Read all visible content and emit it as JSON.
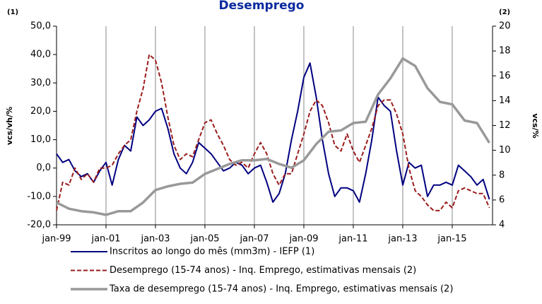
{
  "chart_data": {
    "type": "line",
    "title": "Desemprego",
    "y_label": "vcs/vh/%",
    "y2_label": "vcs/%",
    "annotations": [
      "(1)",
      "(2)"
    ],
    "x": [
      1999,
      1999.25,
      1999.5,
      1999.75,
      2000,
      2000.25,
      2000.5,
      2000.75,
      2001,
      2001.25,
      2001.5,
      2001.75,
      2002,
      2002.25,
      2002.5,
      2002.75,
      2003,
      2003.25,
      2003.5,
      2003.75,
      2004,
      2004.25,
      2004.5,
      2004.75,
      2005,
      2005.25,
      2005.5,
      2005.75,
      2006,
      2006.25,
      2006.5,
      2006.75,
      2007,
      2007.25,
      2007.5,
      2007.75,
      2008,
      2008.25,
      2008.5,
      2008.75,
      2009,
      2009.25,
      2009.5,
      2009.75,
      2010,
      2010.25,
      2010.5,
      2010.75,
      2011,
      2011.25,
      2011.5,
      2011.75,
      2012,
      2012.25,
      2012.5,
      2012.75,
      2013,
      2013.25,
      2013.5,
      2013.75,
      2014,
      2014.25,
      2014.5,
      2014.75,
      2015,
      2015.25,
      2015.5,
      2015.75,
      2016,
      2016.25,
      2016.5
    ],
    "series": [
      {
        "name": "Inscritos ao longo do mês (mm3m) - IEFP (1)",
        "color": "#000080",
        "dash": false,
        "values": [
          5,
          2,
          3,
          -1,
          -3,
          -2,
          -5,
          -1,
          2,
          -6,
          3,
          8,
          6,
          18,
          15,
          17,
          20,
          21,
          14,
          5,
          0,
          -2,
          2,
          9,
          7,
          5,
          2,
          -1,
          0,
          2,
          1,
          -2,
          0,
          1,
          -5,
          -12,
          -9,
          -2,
          10,
          20,
          32,
          37,
          25,
          10,
          -2,
          -10,
          -7,
          -7,
          -8,
          -12,
          -2,
          10,
          25,
          22,
          20,
          6,
          -6,
          2,
          0,
          1,
          -10,
          -6,
          -6,
          -5,
          -6,
          1,
          -1,
          -3,
          -6,
          -4,
          -11
        ]
      },
      {
        "name": "Desemprego (15-74 anos) - Inq. Emprego, estimativas mensais (2)",
        "color": "#9b1c1c",
        "dash": true,
        "values": [
          -15,
          -5,
          -6,
          0,
          -4,
          -2,
          -5,
          0,
          0,
          1,
          5,
          8,
          10,
          20,
          28,
          40,
          38,
          30,
          18,
          8,
          3,
          5,
          4,
          10,
          16,
          17,
          12,
          8,
          3,
          1,
          2,
          0,
          5,
          9,
          5,
          -2,
          -6,
          -2,
          -2,
          5,
          12,
          20,
          24,
          22,
          16,
          8,
          6,
          12,
          6,
          2,
          8,
          14,
          22,
          24,
          24,
          19,
          12,
          0,
          -8,
          -10,
          -13,
          -15,
          -15,
          -12,
          -14,
          -8,
          -7,
          -8,
          -9,
          -9,
          -14
        ]
      },
      {
        "name": "Taxa de desemprego (15-74 anos) - Inq. Emprego, estimativas mensais (2)",
        "color": "#999999",
        "dash": false,
        "axis": "y2",
        "x": [
          1999,
          1999.5,
          2000,
          2000.5,
          2001,
          2001.5,
          2002,
          2002.5,
          2003,
          2003.5,
          2004,
          2004.5,
          2005,
          2005.5,
          2006,
          2006.5,
          2007,
          2007.5,
          2008,
          2008.5,
          2009,
          2009.5,
          2010,
          2010.5,
          2011,
          2011.5,
          2012,
          2012.5,
          2013,
          2013.5,
          2014,
          2014.5,
          2015,
          2015.5,
          2016,
          2016.5
        ],
        "values": [
          5.8,
          5.3,
          5.1,
          5.0,
          4.8,
          5.1,
          5.1,
          5.8,
          6.8,
          7.1,
          7.3,
          7.4,
          8.1,
          8.5,
          8.9,
          9.2,
          9.2,
          9.3,
          8.9,
          8.6,
          9.2,
          10.5,
          11.5,
          11.6,
          12.2,
          12.3,
          14.5,
          15.8,
          17.4,
          16.8,
          15.0,
          13.9,
          13.7,
          12.4,
          12.2,
          10.6
        ]
      }
    ],
    "xlim": [
      1999,
      2016.63
    ],
    "xticks": [
      {
        "value": 1999,
        "label": "jan-99"
      },
      {
        "value": 2001,
        "label": "jan-01"
      },
      {
        "value": 2003,
        "label": "jan-03"
      },
      {
        "value": 2005,
        "label": "jan-05"
      },
      {
        "value": 2007,
        "label": "jan-07"
      },
      {
        "value": 2009,
        "label": "jan-09"
      },
      {
        "value": 2011,
        "label": "jan-11"
      },
      {
        "value": 2013,
        "label": "jan-13"
      },
      {
        "value": 2015,
        "label": "jan-15"
      }
    ],
    "ylim": [
      -20,
      50
    ],
    "yticks": [
      {
        "value": -20,
        "label": "-20,0"
      },
      {
        "value": -10,
        "label": "-10,0"
      },
      {
        "value": 0,
        "label": "0,0"
      },
      {
        "value": 10,
        "label": "10,0"
      },
      {
        "value": 20,
        "label": "20,0"
      },
      {
        "value": 30,
        "label": "30,0"
      },
      {
        "value": 40,
        "label": "40,0"
      },
      {
        "value": 50,
        "label": "50,0"
      }
    ],
    "y2lim": [
      4,
      20
    ],
    "y2ticks": [
      4,
      6,
      8,
      10,
      12,
      14,
      16,
      18,
      20
    ],
    "grid": "x"
  }
}
